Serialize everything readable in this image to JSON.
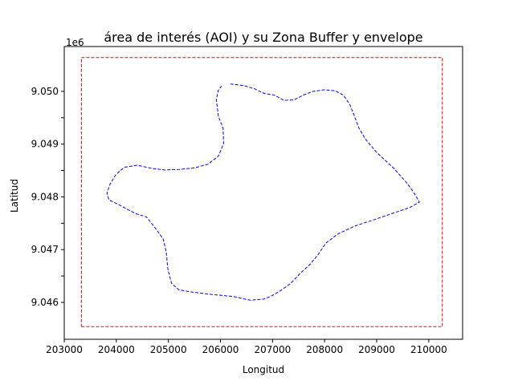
{
  "chart_data": {
    "type": "line",
    "title": "área de interés (AOI) y su Zona Buffer y envelope",
    "xlabel": "Longitud",
    "ylabel": "Latitud",
    "y_offset_label": "1e6",
    "xlim": [
      203000,
      210650
    ],
    "ylim": [
      9045300,
      9050850
    ],
    "x_ticks": [
      203000,
      204000,
      205000,
      206000,
      207000,
      208000,
      209000,
      210000
    ],
    "x_tick_labels": [
      "203000",
      "204000",
      "205000",
      "206000",
      "207000",
      "208000",
      "209000",
      "210000"
    ],
    "y_ticks": [
      9046000,
      9046500,
      9047000,
      9047500,
      9048000,
      9048500,
      9049000,
      9049500,
      9050000
    ],
    "y_tick_labels": [
      "9.046",
      "",
      "9.047",
      "",
      "9.048",
      "",
      "9.049",
      "",
      "9.050"
    ],
    "grid": false,
    "series": [
      {
        "color": "#ff0000",
        "style": "dashed",
        "x": [
          203330,
          210260,
          210260,
          203330,
          203330
        ],
        "y": [
          9045540,
          9045540,
          9050640,
          9050640,
          9045540
        ]
      },
      {
        "color": "#0000ff",
        "style": "dashed",
        "x": [
          206190,
          206450,
          206650,
          206840,
          207030,
          207220,
          207420,
          207590,
          207780,
          208000,
          208200,
          208360,
          208480,
          208570,
          208660,
          208780,
          208990,
          209330,
          209590,
          209740,
          209820,
          209640,
          209340,
          208960,
          208590,
          208260,
          208020,
          207870,
          207720,
          207520,
          207350,
          207150,
          206960,
          206820,
          206570,
          206250,
          205830,
          205410,
          205200,
          205060,
          204990,
          204960,
          204900,
          204770,
          204580,
          204380,
          204220,
          204030,
          203860,
          203820,
          203880,
          203990,
          204150,
          204400,
          204680,
          204930,
          205220,
          205500,
          205760,
          205960,
          206060,
          206050,
          205960,
          205920,
          205960,
          206020
        ],
        "y": [
          9050140,
          9050110,
          9050050,
          9049960,
          9049930,
          9049830,
          9049840,
          9049930,
          9050000,
          9050030,
          9050010,
          9049930,
          9049760,
          9049540,
          9049300,
          9049100,
          9048850,
          9048540,
          9048250,
          9048040,
          9047900,
          9047800,
          9047700,
          9047570,
          9047450,
          9047300,
          9047120,
          9046900,
          9046720,
          9046540,
          9046360,
          9046220,
          9046110,
          9046060,
          9046040,
          9046110,
          9046150,
          9046200,
          9046240,
          9046360,
          9046630,
          9046940,
          9047200,
          9047380,
          9047620,
          9047680,
          9047760,
          9047860,
          9047940,
          9048070,
          9048240,
          9048420,
          9048560,
          9048600,
          9048540,
          9048510,
          9048520,
          9048550,
          9048620,
          9048770,
          9049010,
          9049300,
          9049530,
          9049850,
          9050020,
          9050100
        ]
      }
    ]
  }
}
